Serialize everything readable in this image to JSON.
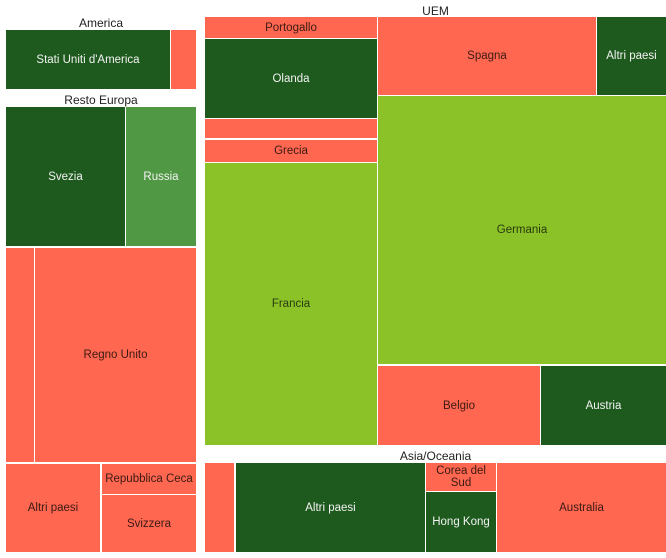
{
  "chart_data": {
    "type": "treemap",
    "groups": [
      {
        "name": "America",
        "items": [
          {
            "label": "Stati Uniti d'America",
            "tone": "down"
          },
          {
            "label": "",
            "tone": "up"
          }
        ]
      },
      {
        "name": "Resto Europa",
        "items": [
          {
            "label": "Svezia",
            "tone": "down"
          },
          {
            "label": "Russia",
            "tone": "mid"
          },
          {
            "label": "",
            "tone": "up"
          },
          {
            "label": "Regno Unito",
            "tone": "up"
          },
          {
            "label": "Altri paesi",
            "tone": "up"
          },
          {
            "label": "Repubblica Ceca",
            "tone": "up"
          },
          {
            "label": "Svizzera",
            "tone": "up"
          }
        ]
      },
      {
        "name": "UEM",
        "items": [
          {
            "label": "Portogallo",
            "tone": "up"
          },
          {
            "label": "Olanda",
            "tone": "down"
          },
          {
            "label": "",
            "tone": "up"
          },
          {
            "label": "Grecia",
            "tone": "up"
          },
          {
            "label": "Francia",
            "tone": "lime"
          },
          {
            "label": "Spagna",
            "tone": "up"
          },
          {
            "label": "Altri paesi",
            "tone": "down"
          },
          {
            "label": "Germania",
            "tone": "lime"
          },
          {
            "label": "Belgio",
            "tone": "up"
          },
          {
            "label": "Austria",
            "tone": "down"
          }
        ]
      },
      {
        "name": "Asia/Oceania",
        "items": [
          {
            "label": "",
            "tone": "up"
          },
          {
            "label": "Altri paesi",
            "tone": "down"
          },
          {
            "label": "Corea del Sud",
            "tone": "up"
          },
          {
            "label": "Hong Kong",
            "tone": "down"
          },
          {
            "label": "Australia",
            "tone": "up"
          }
        ]
      }
    ],
    "colors": {
      "up": "#ff6750",
      "down": "#1e5a1e",
      "mid": "#519844",
      "lime": "#8ac227"
    }
  }
}
